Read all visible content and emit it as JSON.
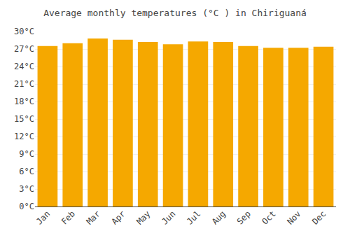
{
  "chart_data": {
    "type": "bar",
    "title": "Average monthly temperatures (°C ) in Chiriguaná",
    "categories": [
      "Jan",
      "Feb",
      "Mar",
      "Apr",
      "May",
      "Jun",
      "Jul",
      "Aug",
      "Sep",
      "Oct",
      "Nov",
      "Dec"
    ],
    "values": [
      27.5,
      28.0,
      28.8,
      28.6,
      28.2,
      27.8,
      28.3,
      28.2,
      27.5,
      27.2,
      27.2,
      27.4
    ],
    "color": "#F5A800",
    "ylim": [
      0,
      30
    ],
    "yticks": [
      {
        "value": 0,
        "label": "0°C"
      },
      {
        "value": 3,
        "label": "3°C"
      },
      {
        "value": 6,
        "label": "6°C"
      },
      {
        "value": 9,
        "label": "9°C"
      },
      {
        "value": 12,
        "label": "12°C"
      },
      {
        "value": 15,
        "label": "15°C"
      },
      {
        "value": 18,
        "label": "18°C"
      },
      {
        "value": 21,
        "label": "21°C"
      },
      {
        "value": 24,
        "label": "24°C"
      },
      {
        "value": 27,
        "label": "27°C"
      },
      {
        "value": 30,
        "label": "30°C"
      }
    ],
    "grid": true
  }
}
